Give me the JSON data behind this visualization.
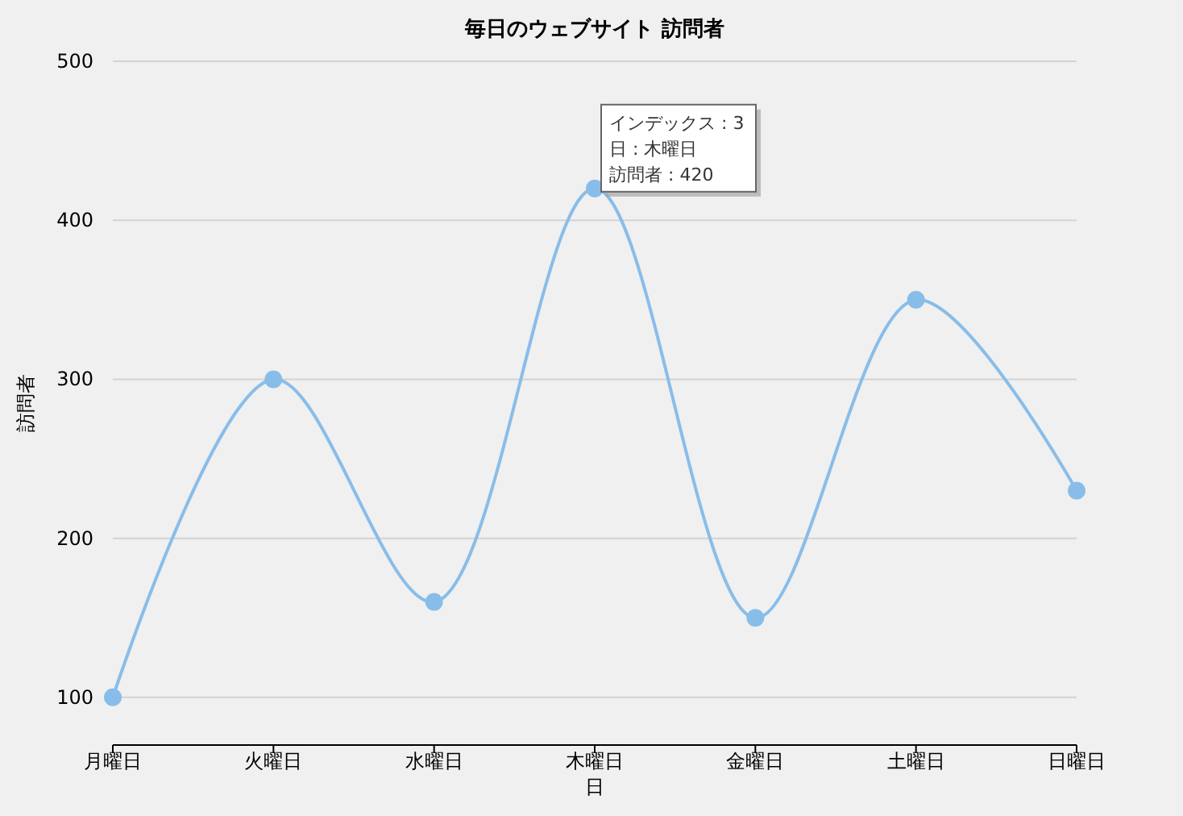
{
  "chart_data": {
    "type": "line",
    "title": "毎日のウェブサイト 訪問者",
    "xlabel": "日",
    "ylabel": "訪問者",
    "categories": [
      "月曜日",
      "火曜日",
      "水曜日",
      "木曜日",
      "金曜日",
      "土曜日",
      "日曜日"
    ],
    "series": [
      {
        "color": "#89bde9",
        "values": [
          100,
          300,
          160,
          420,
          150,
          350,
          230
        ]
      }
    ],
    "ylim": [
      70,
      500
    ],
    "yticks": [
      100,
      200,
      300,
      400,
      500
    ],
    "grid": "y",
    "marker": "circle",
    "annotations": [
      "インデックス : 3",
      "日 : 木曜日",
      {
        "text": "訪問者 : 420",
        "x": "木曜日",
        "y": 420
      }
    ]
  }
}
